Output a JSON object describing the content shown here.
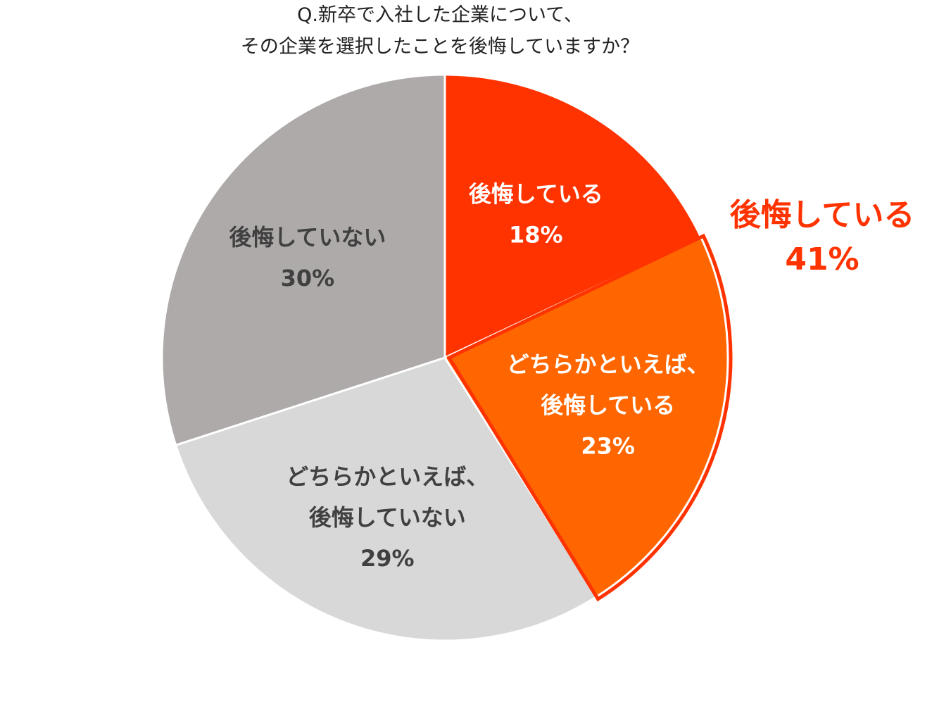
{
  "chart_data": {
    "type": "pie",
    "title": [
      "Q.新卒で入社した企業について、",
      "その企業を選択したことを後悔していますか？"
    ],
    "slices": [
      {
        "label": [
          "後悔している"
        ],
        "value": 18,
        "value_label": "18%",
        "color": "#ff3300",
        "text_color": "#ffffff"
      },
      {
        "label": [
          "どちらかといえば、",
          "後悔している"
        ],
        "value": 23,
        "value_label": "23%",
        "color": "#ff6600",
        "text_color": "#ffffff"
      },
      {
        "label": [
          "どちらかといえば、",
          "後悔していない"
        ],
        "value": 29,
        "value_label": "29%",
        "color": "#d9d8d8",
        "text_color": "#404040"
      },
      {
        "label": [
          "後悔していない"
        ],
        "value": 30,
        "value_label": "30%",
        "color": "#aeaaa9",
        "text_color": "#404040"
      }
    ],
    "callout": {
      "label": "後悔している",
      "value": 41,
      "value_label": "41%",
      "color": "#ff3300",
      "covers_slices": [
        0,
        1
      ]
    },
    "start_angle": "12 o'clock",
    "direction": "clockwise",
    "legend": "none"
  }
}
